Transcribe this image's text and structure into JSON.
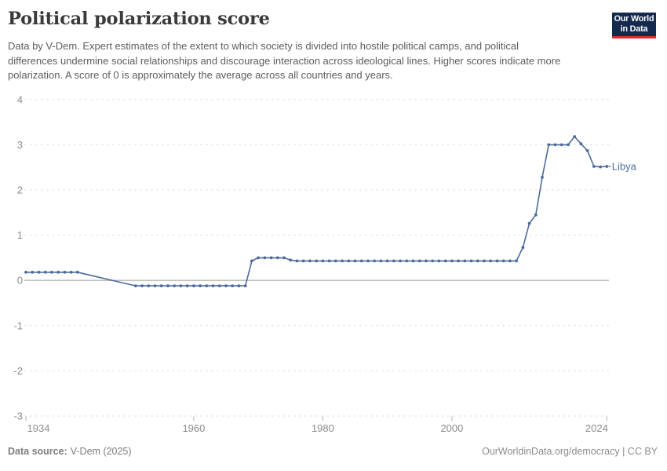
{
  "header": {
    "title": "Political polarization score",
    "subtitle": "Data by V-Dem. Expert estimates of the extent to which society is divided into hostile political camps, and political differences undermine social relationships and discourage interaction across ideological lines. Higher scores indicate more polarization. A score of 0 is approximately the average across all countries and years.",
    "logo": {
      "line1": "Our World",
      "line2": "in Data",
      "bg_color": "#13294d",
      "stripe_color": "#dc2a2e"
    }
  },
  "chart_data": {
    "type": "line",
    "title": "Political polarization score",
    "xlabel": "",
    "ylabel": "",
    "xlim": [
      1934,
      2024
    ],
    "ylim": [
      -3,
      4
    ],
    "x_ticks": [
      1934,
      1960,
      1980,
      2000,
      2024
    ],
    "y_ticks": [
      4,
      3,
      2,
      1,
      0,
      -1,
      -2,
      -3
    ],
    "grid": "horizontal-dashed",
    "zero_line": true,
    "legend_position": "end-of-line-label",
    "colors": {
      "grid": "#e2e2e2",
      "zero_line": "#c0c0c0",
      "tick": "#b0b0b0",
      "axis_text": "#8c8c8c"
    },
    "series": [
      {
        "name": "Libya",
        "color": "#4c6a9c",
        "points": [
          [
            1934,
            0.18
          ],
          [
            1935,
            0.18
          ],
          [
            1936,
            0.18
          ],
          [
            1937,
            0.18
          ],
          [
            1938,
            0.18
          ],
          [
            1939,
            0.18
          ],
          [
            1940,
            0.18
          ],
          [
            1941,
            0.18
          ],
          [
            1942,
            0.18
          ],
          [
            1951,
            -0.12
          ],
          [
            1952,
            -0.12
          ],
          [
            1953,
            -0.12
          ],
          [
            1954,
            -0.12
          ],
          [
            1955,
            -0.12
          ],
          [
            1956,
            -0.12
          ],
          [
            1957,
            -0.12
          ],
          [
            1958,
            -0.12
          ],
          [
            1959,
            -0.12
          ],
          [
            1960,
            -0.12
          ],
          [
            1961,
            -0.12
          ],
          [
            1962,
            -0.12
          ],
          [
            1963,
            -0.12
          ],
          [
            1964,
            -0.12
          ],
          [
            1965,
            -0.12
          ],
          [
            1966,
            -0.12
          ],
          [
            1967,
            -0.12
          ],
          [
            1968,
            -0.12
          ],
          [
            1969,
            0.43
          ],
          [
            1970,
            0.5
          ],
          [
            1971,
            0.5
          ],
          [
            1972,
            0.5
          ],
          [
            1973,
            0.5
          ],
          [
            1974,
            0.5
          ],
          [
            1975,
            0.45
          ],
          [
            1976,
            0.43
          ],
          [
            1977,
            0.43
          ],
          [
            1978,
            0.43
          ],
          [
            1979,
            0.43
          ],
          [
            1980,
            0.43
          ],
          [
            1981,
            0.43
          ],
          [
            1982,
            0.43
          ],
          [
            1983,
            0.43
          ],
          [
            1984,
            0.43
          ],
          [
            1985,
            0.43
          ],
          [
            1986,
            0.43
          ],
          [
            1987,
            0.43
          ],
          [
            1988,
            0.43
          ],
          [
            1989,
            0.43
          ],
          [
            1990,
            0.43
          ],
          [
            1991,
            0.43
          ],
          [
            1992,
            0.43
          ],
          [
            1993,
            0.43
          ],
          [
            1994,
            0.43
          ],
          [
            1995,
            0.43
          ],
          [
            1996,
            0.43
          ],
          [
            1997,
            0.43
          ],
          [
            1998,
            0.43
          ],
          [
            1999,
            0.43
          ],
          [
            2000,
            0.43
          ],
          [
            2001,
            0.43
          ],
          [
            2002,
            0.43
          ],
          [
            2003,
            0.43
          ],
          [
            2004,
            0.43
          ],
          [
            2005,
            0.43
          ],
          [
            2006,
            0.43
          ],
          [
            2007,
            0.43
          ],
          [
            2008,
            0.43
          ],
          [
            2009,
            0.43
          ],
          [
            2010,
            0.43
          ],
          [
            2011,
            0.73
          ],
          [
            2012,
            1.26
          ],
          [
            2013,
            1.45
          ],
          [
            2014,
            2.28
          ],
          [
            2015,
            3.0
          ],
          [
            2016,
            3.0
          ],
          [
            2017,
            3.0
          ],
          [
            2018,
            3.0
          ],
          [
            2019,
            3.18
          ],
          [
            2020,
            3.02
          ],
          [
            2021,
            2.87
          ],
          [
            2022,
            2.52
          ],
          [
            2023,
            2.51
          ],
          [
            2024,
            2.52
          ]
        ]
      }
    ]
  },
  "footer": {
    "source_label": "Data source:",
    "source_value": "V-Dem (2025)",
    "rights": "OurWorldinData.org/democracy | CC BY"
  }
}
